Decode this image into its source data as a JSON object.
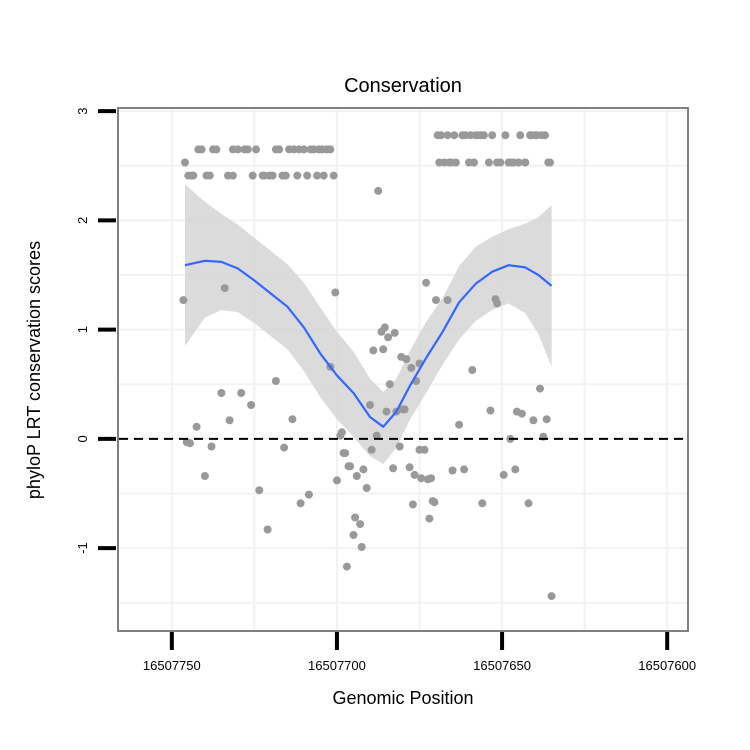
{
  "chart_data": {
    "type": "scatter",
    "title": "Conservation",
    "xlabel": "Genomic Position",
    "ylabel": "phyloP LRT conservation scores",
    "x_reversed": true,
    "xlim": [
      16507766,
      16507594
    ],
    "ylim": [
      -1.75,
      3.02
    ],
    "xticks": [
      16507750,
      16507700,
      16507650,
      16507600
    ],
    "xtick_labels": [
      "16507750",
      "16507700",
      "16507650",
      "16507600"
    ],
    "yticks": [
      -1,
      0,
      1,
      2,
      3
    ],
    "ytick_labels": [
      "-1",
      "0",
      "1",
      "2",
      "3"
    ],
    "reference_line": {
      "y": 0,
      "style": "dashed"
    },
    "colors": {
      "points": "#999999",
      "smooth": "#3366ff",
      "ribbon": "#d5d5d5",
      "grid": "#f2f2f2",
      "panel_border": "#808080",
      "axis_ticks": "#000000"
    },
    "series": [
      {
        "name": "phyloP scores",
        "kind": "points",
        "points": [
          [
            16507746.5,
            1.27
          ],
          [
            16507746.0,
            2.53
          ],
          [
            16507745.5,
            -0.03
          ],
          [
            16507745.0,
            2.41
          ],
          [
            16507744.5,
            -0.04
          ],
          [
            16507744.0,
            2.41
          ],
          [
            16507743.5,
            2.41
          ],
          [
            16507742.5,
            0.11
          ],
          [
            16507742.0,
            2.65
          ],
          [
            16507741.0,
            2.65
          ],
          [
            16507740.0,
            -0.34
          ],
          [
            16507739.5,
            2.41
          ],
          [
            16507738.5,
            2.41
          ],
          [
            16507738.0,
            -0.07
          ],
          [
            16507737.5,
            2.65
          ],
          [
            16507736.5,
            2.65
          ],
          [
            16507735.0,
            0.42
          ],
          [
            16507734.0,
            1.38
          ],
          [
            16507733.0,
            2.41
          ],
          [
            16507732.5,
            0.17
          ],
          [
            16507731.5,
            2.41
          ],
          [
            16507731.5,
            2.65
          ],
          [
            16507730.0,
            2.65
          ],
          [
            16507729.0,
            0.42
          ],
          [
            16507728.0,
            2.65
          ],
          [
            16507727.0,
            2.65
          ],
          [
            16507726.0,
            0.31
          ],
          [
            16507725.5,
            2.41
          ],
          [
            16507724.5,
            2.65
          ],
          [
            16507723.5,
            -0.47
          ],
          [
            16507722.5,
            2.41
          ],
          [
            16507722.0,
            2.41
          ],
          [
            16507721.0,
            -0.83
          ],
          [
            16507720.5,
            2.41
          ],
          [
            16507719.5,
            2.41
          ],
          [
            16507718.5,
            2.65
          ],
          [
            16507718.5,
            0.53
          ],
          [
            16507717.5,
            2.65
          ],
          [
            16507716.5,
            2.41
          ],
          [
            16507716.0,
            -0.08
          ],
          [
            16507715.5,
            2.41
          ],
          [
            16507714.5,
            2.65
          ],
          [
            16507713.5,
            0.18
          ],
          [
            16507713.0,
            2.65
          ],
          [
            16507712.0,
            2.41
          ],
          [
            16507711.5,
            2.65
          ],
          [
            16507711.0,
            -0.59
          ],
          [
            16507710.0,
            2.65
          ],
          [
            16507709.0,
            2.41
          ],
          [
            16507708.5,
            -0.51
          ],
          [
            16507708.0,
            2.65
          ],
          [
            16507707.0,
            2.65
          ],
          [
            16507706.0,
            2.41
          ],
          [
            16507705.5,
            2.65
          ],
          [
            16507704.5,
            2.65
          ],
          [
            16507704.0,
            2.41
          ],
          [
            16507703.0,
            2.65
          ],
          [
            16507702.0,
            0.66
          ],
          [
            16507702.0,
            2.65
          ],
          [
            16507701.0,
            2.41
          ],
          [
            16507700.5,
            1.34
          ],
          [
            16507700.0,
            -0.38
          ],
          [
            16507699.0,
            0.03
          ],
          [
            16507698.5,
            0.06
          ],
          [
            16507698.0,
            -0.13
          ],
          [
            16507697.5,
            -0.13
          ],
          [
            16507697.0,
            -1.17
          ],
          [
            16507696.5,
            -0.25
          ],
          [
            16507696.0,
            -0.25
          ],
          [
            16507695.0,
            -0.88
          ],
          [
            16507694.5,
            -0.72
          ],
          [
            16507694.0,
            -0.34
          ],
          [
            16507693.0,
            -0.78
          ],
          [
            16507692.5,
            -0.99
          ],
          [
            16507692.0,
            -0.28
          ],
          [
            16507691.0,
            -0.45
          ],
          [
            16507690.0,
            0.31
          ],
          [
            16507689.5,
            -0.1
          ],
          [
            16507689.0,
            0.81
          ],
          [
            16507688.0,
            0.03
          ],
          [
            16507687.5,
            2.27
          ],
          [
            16507686.5,
            0.98
          ],
          [
            16507686.0,
            0.82
          ],
          [
            16507685.5,
            1.02
          ],
          [
            16507685.0,
            0.25
          ],
          [
            16507684.5,
            0.93
          ],
          [
            16507684.0,
            0.5
          ],
          [
            16507683.0,
            -0.27
          ],
          [
            16507682.5,
            0.97
          ],
          [
            16507682.0,
            0.25
          ],
          [
            16507681.0,
            -0.07
          ],
          [
            16507680.5,
            0.75
          ],
          [
            16507680.0,
            0.27
          ],
          [
            16507679.5,
            0.27
          ],
          [
            16507679.0,
            0.73
          ],
          [
            16507678.0,
            -0.26
          ],
          [
            16507677.5,
            0.65
          ],
          [
            16507677.0,
            -0.6
          ],
          [
            16507676.5,
            -0.33
          ],
          [
            16507676.0,
            0.53
          ],
          [
            16507675.0,
            0.69
          ],
          [
            16507675.0,
            -0.1
          ],
          [
            16507674.5,
            -0.36
          ],
          [
            16507673.5,
            -0.1
          ],
          [
            16507673.0,
            1.43
          ],
          [
            16507672.5,
            -0.37
          ],
          [
            16507672.0,
            -0.73
          ],
          [
            16507671.5,
            -0.36
          ],
          [
            16507671.0,
            -0.57
          ],
          [
            16507670.5,
            -0.58
          ],
          [
            16507670.0,
            1.27
          ],
          [
            16507669.5,
            2.78
          ],
          [
            16507669.0,
            2.53
          ],
          [
            16507668.5,
            2.78
          ],
          [
            16507667.5,
            2.53
          ],
          [
            16507666.5,
            1.27
          ],
          [
            16507666.5,
            2.78
          ],
          [
            16507666.0,
            2.53
          ],
          [
            16507665.5,
            2.53
          ],
          [
            16507665.0,
            -0.29
          ],
          [
            16507664.5,
            2.78
          ],
          [
            16507664.0,
            2.53
          ],
          [
            16507663.0,
            0.13
          ],
          [
            16507662.0,
            2.78
          ],
          [
            16507661.5,
            -0.28
          ],
          [
            16507661.0,
            2.78
          ],
          [
            16507660.0,
            2.53
          ],
          [
            16507659.5,
            2.78
          ],
          [
            16507659.0,
            0.63
          ],
          [
            16507658.5,
            2.53
          ],
          [
            16507658.0,
            2.78
          ],
          [
            16507657.5,
            2.78
          ],
          [
            16507656.5,
            2.78
          ],
          [
            16507656.0,
            -0.59
          ],
          [
            16507655.5,
            2.78
          ],
          [
            16507654.0,
            2.53
          ],
          [
            16507653.5,
            0.26
          ],
          [
            16507653.0,
            2.78
          ],
          [
            16507652.0,
            1.28
          ],
          [
            16507651.5,
            1.24
          ],
          [
            16507651.5,
            2.53
          ],
          [
            16507650.5,
            2.53
          ],
          [
            16507649.5,
            -0.33
          ],
          [
            16507649.0,
            2.78
          ],
          [
            16507648.0,
            2.53
          ],
          [
            16507647.5,
            0.0
          ],
          [
            16507647.0,
            2.53
          ],
          [
            16507646.5,
            2.53
          ],
          [
            16507646.0,
            -0.28
          ],
          [
            16507645.5,
            0.25
          ],
          [
            16507645.0,
            2.53
          ],
          [
            16507644.5,
            2.78
          ],
          [
            16507644.0,
            0.23
          ],
          [
            16507643.0,
            2.53
          ],
          [
            16507643.0,
            2.53
          ],
          [
            16507642.0,
            -0.59
          ],
          [
            16507641.5,
            2.78
          ],
          [
            16507641.0,
            2.78
          ],
          [
            16507640.5,
            0.17
          ],
          [
            16507640.0,
            2.78
          ],
          [
            16507639.5,
            2.78
          ],
          [
            16507638.5,
            0.46
          ],
          [
            16507638.0,
            2.78
          ],
          [
            16507637.5,
            0.02
          ],
          [
            16507637.0,
            2.78
          ],
          [
            16507636.5,
            0.18
          ],
          [
            16507636.0,
            2.53
          ],
          [
            16507635.5,
            2.53
          ],
          [
            16507635.0,
            -1.44
          ]
        ]
      },
      {
        "name": "loess smooth",
        "kind": "line",
        "x": [
          16507746.0,
          16507740.0,
          16507735.0,
          16507730.0,
          16507725.0,
          16507720.0,
          16507715.0,
          16507710.0,
          16507705.0,
          16507700.0,
          16507695.0,
          16507690.0,
          16507686.0,
          16507682.0,
          16507678.0,
          16507673.0,
          16507668.0,
          16507663.0,
          16507658.0,
          16507653.0,
          16507648.0,
          16507643.0,
          16507639.0,
          16507635.0
        ],
        "y": [
          1.59,
          1.63,
          1.62,
          1.56,
          1.45,
          1.33,
          1.21,
          1.02,
          0.78,
          0.58,
          0.42,
          0.2,
          0.11,
          0.25,
          0.48,
          0.74,
          0.98,
          1.25,
          1.42,
          1.53,
          1.59,
          1.57,
          1.5,
          1.4
        ],
        "ribbon_upper": [
          2.33,
          2.17,
          2.06,
          1.96,
          1.84,
          1.72,
          1.6,
          1.43,
          1.2,
          0.98,
          0.8,
          0.55,
          0.43,
          0.55,
          0.8,
          1.07,
          1.29,
          1.58,
          1.76,
          1.85,
          1.92,
          1.97,
          2.03,
          2.14
        ],
        "ribbon_lower": [
          0.85,
          1.11,
          1.18,
          1.16,
          1.06,
          0.94,
          0.82,
          0.62,
          0.38,
          0.18,
          0.02,
          -0.16,
          -0.23,
          -0.08,
          0.17,
          0.42,
          0.68,
          0.91,
          1.08,
          1.18,
          1.24,
          1.15,
          0.96,
          0.66
        ]
      }
    ]
  }
}
